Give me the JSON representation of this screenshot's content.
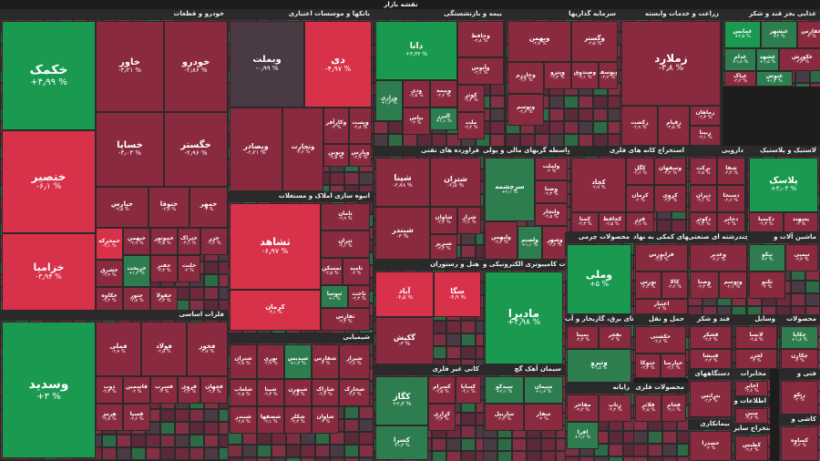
{
  "header": {
    "title": "نقشه بازار"
  },
  "legend_colors": {
    "up_strong": "#1a9a50",
    "up": "#2e7d4f",
    "neutral": "#4a3a44",
    "down": "#8a2a3e",
    "down_strong": "#d8314a"
  },
  "chart_data": {
    "type": "treemap",
    "sectors": [
      {
        "name": "خودرو و قطعات",
        "tiles": [
          {
            "name": "خکمک",
            "change": "+۴٫۹۹ %"
          },
          {
            "name": "خنصیر",
            "change": "-۶٫۱ %"
          },
          {
            "name": "خزامیا",
            "change": "-۳٫۹۴ %"
          },
          {
            "name": "خاور",
            "change": "-۳٫۲۱ %"
          },
          {
            "name": "خودرو",
            "change": "-۲٫۸۶ %"
          },
          {
            "name": "خساپا",
            "change": "-۳٫۰۴ %"
          },
          {
            "name": "خگستر",
            "change": "-۲٫۹۶ %"
          },
          {
            "name": "خپارس",
            "change": "-۳٫۵ %"
          },
          {
            "name": "ختوقا",
            "change": "-۲٫۷ %"
          },
          {
            "name": "خمهر",
            "change": "-۳ %"
          },
          {
            "name": "خمحرکه",
            "change": "-۴٫۱ %"
          },
          {
            "name": "خبهمن",
            "change": "-۲٫۹ %"
          },
          {
            "name": "خموتور",
            "change": "-۲٫۵ %"
          },
          {
            "name": "ختراک",
            "change": "-۳٫۱ %"
          },
          {
            "name": "خزر",
            "change": "-۲٫۶ %"
          },
          {
            "name": "خریخت",
            "change": "+۱٫۲ %"
          },
          {
            "name": "خشرق",
            "change": "-۲٫۹ %"
          },
          {
            "name": "خفنر",
            "change": "-۳٫۳ %"
          },
          {
            "name": "خلنت",
            "change": "-۲ %"
          },
          {
            "name": "خکاوه",
            "change": "-۲٫۲ %"
          },
          {
            "name": "ختور",
            "change": "-۲٫۸ %"
          },
          {
            "name": "خفولا",
            "change": "-۲٫۳ %"
          }
        ]
      },
      {
        "name": "فلزات اساسی",
        "tiles": [
          {
            "name": "وسدید",
            "change": "+۳ %"
          },
          {
            "name": "فملی",
            "change": "-۲٫۹ %"
          },
          {
            "name": "فولاد",
            "change": "-۲٫۵ %"
          },
          {
            "name": "فخوز",
            "change": "-۲٫۷ %"
          },
          {
            "name": "ذوب",
            "change": "-۲٫۳ %"
          },
          {
            "name": "فاسمین",
            "change": "-۲ %"
          },
          {
            "name": "فسرب",
            "change": "-۳ %"
          },
          {
            "name": "فروی",
            "change": "-۲٫۲ %"
          },
          {
            "name": "فجهان",
            "change": "-۲٫۴ %"
          },
          {
            "name": "هرمز",
            "change": "-۲٫۸ %"
          },
          {
            "name": "فسپا",
            "change": "-۲٫۶ %"
          }
        ]
      },
      {
        "name": "بانکها و موسسات اعتباری",
        "tiles": [
          {
            "name": "وبملت",
            "change": "-۰٫۹۹ %"
          },
          {
            "name": "دی",
            "change": "-۴٫۹۷ %"
          },
          {
            "name": "وبصادر",
            "change": "-۲٫۲۱ %"
          },
          {
            "name": "وتجارت",
            "change": "-۲٫۶ %"
          },
          {
            "name": "وکارآفر",
            "change": "-۲ %"
          },
          {
            "name": "وپست",
            "change": "-۲٫۸ %"
          },
          {
            "name": "ونوین",
            "change": "-۲٫۵ %"
          },
          {
            "name": "وپارس",
            "change": "-۲٫۷ %"
          }
        ]
      },
      {
        "name": "انبوه سازی املاک و مستغلات",
        "tiles": [
          {
            "name": "ثشاهد",
            "change": "-۶٫۹۷ %"
          },
          {
            "name": "ثامان",
            "change": "-۲٫۹ %"
          },
          {
            "name": "ثتران",
            "change": "-۳٫۱ %"
          },
          {
            "name": "ثامید",
            "change": "-۲ %"
          },
          {
            "name": "ثمسکن",
            "change": "-۲٫۵ %"
          },
          {
            "name": "ثنوسا",
            "change": "+۱ %"
          },
          {
            "name": "کرمان",
            "change": "-۴٫۱ %"
          },
          {
            "name": "ثاخت",
            "change": "-۲٫۳ %"
          },
          {
            "name": "ثفارس",
            "change": "-۲٫۲ %"
          }
        ]
      },
      {
        "name": "شیمیایی",
        "tiles": [
          {
            "name": "شتران",
            "change": "-۲٫۸ %"
          },
          {
            "name": "نوری",
            "change": "-۲٫۹ %"
          },
          {
            "name": "شپدیس",
            "change": "+۱٫۴ %"
          },
          {
            "name": "شفارس",
            "change": "-۲ %"
          },
          {
            "name": "شیراز",
            "change": "-۲٫۶ %"
          },
          {
            "name": "شپنا",
            "change": "-۲٫۳ %"
          },
          {
            "name": "شبهرن",
            "change": "-۲٫۵ %"
          },
          {
            "name": "شاراک",
            "change": "-۲٫۲ %"
          },
          {
            "name": "شخارک",
            "change": "-۲٫۴ %"
          },
          {
            "name": "شصفها",
            "change": "-۲٫۱ %"
          },
          {
            "name": "شکلر",
            "change": "-۲٫۳ %"
          },
          {
            "name": "شبندر",
            "change": "-۲٫۷ %"
          },
          {
            "name": "شلعاب",
            "change": "-۲٫۵ %"
          },
          {
            "name": "شاوان",
            "change": "-۲ %"
          }
        ]
      },
      {
        "name": "بیمه و بازنشستگی",
        "tiles": [
          {
            "name": "دانا",
            "change": "+۳٫۴۳ %"
          },
          {
            "name": "وحافظ",
            "change": "-۲٫۸ %"
          },
          {
            "name": "وآتوس",
            "change": "-۲٫۱ %"
          },
          {
            "name": "ورازی",
            "change": "+۱٫۳ %"
          },
          {
            "name": "ودی",
            "change": "-۲٫۵ %"
          },
          {
            "name": "وبیمه",
            "change": "-۲٫۶ %"
          },
          {
            "name": "البرز",
            "change": "+۱٫۱ %"
          },
          {
            "name": "کوثر",
            "change": "-۲٫۲ %"
          },
          {
            "name": "بپاس",
            "change": "-۲ %"
          },
          {
            "name": "ملت",
            "change": "-۲٫۴ %"
          }
        ]
      },
      {
        "name": "سرمایه گذاریها",
        "tiles": [
          {
            "name": "وبهمن",
            "change": "-۲٫۷ %"
          },
          {
            "name": "وگستر",
            "change": "-۲٫۵ %"
          },
          {
            "name": "وپترو",
            "change": "-۲٫۳ %"
          },
          {
            "name": "وصندوق",
            "change": "-۲٫۱ %"
          },
          {
            "name": "وخارزم",
            "change": "-۲٫۴ %"
          },
          {
            "name": "وتوسم",
            "change": "-۲٫۶ %"
          },
          {
            "name": "ویوسف",
            "change": "-۲٫۲ %"
          }
        ]
      },
      {
        "name": "زراعت و خدمات وابسته",
        "tiles": [
          {
            "name": "زملارد",
            "change": "-۳٫۸ %"
          },
          {
            "name": "زکشت",
            "change": "-۲٫۹ %"
          },
          {
            "name": "زقیام",
            "change": "-۲٫۵ %"
          },
          {
            "name": "زماهان",
            "change": "-۲٫۳ %"
          },
          {
            "name": "زبینا",
            "change": "-۲٫۱ %"
          }
        ]
      },
      {
        "name": "غذایی بجز قند و شکر",
        "tiles": [
          {
            "name": "غمایس",
            "change": "+۲٫۵ %"
          },
          {
            "name": "غبشهر",
            "change": "+۲ %"
          },
          {
            "name": "غدام",
            "change": "+۱٫۸ %"
          },
          {
            "name": "غشهد",
            "change": "+۱٫۵ %"
          },
          {
            "name": "غکورش",
            "change": "-۲٫۳ %"
          },
          {
            "name": "غفارس",
            "change": "-۲ %"
          },
          {
            "name": "غپاک",
            "change": "-۲٫۲ %"
          },
          {
            "name": "غنوش",
            "change": "+۱٫۲ %"
          }
        ]
      },
      {
        "name": "فراورده های نفتی",
        "tiles": [
          {
            "name": "شپنا",
            "change": "-۲٫۷۸ %"
          },
          {
            "name": "شتران",
            "change": "-۲٫۵ %"
          },
          {
            "name": "شبندر",
            "change": "-۳ %"
          },
          {
            "name": "شاوان",
            "change": "-۲٫۲ %"
          },
          {
            "name": "شبریز",
            "change": "-۲٫۴ %"
          },
          {
            "name": "شراز",
            "change": "-۲٫۱ %"
          }
        ]
      },
      {
        "name": "واسطه گریهای مالی و پولی",
        "tiles": [
          {
            "name": "سرچشمه",
            "change": "+۲٫۱ %"
          },
          {
            "name": "ولملت",
            "change": "-۲ %"
          },
          {
            "name": "وصنا",
            "change": "-۲٫۳ %"
          },
          {
            "name": "ولتجار",
            "change": "-۲٫۵ %"
          },
          {
            "name": "ولبهمن",
            "change": "-۲٫۲ %"
          },
          {
            "name": "ولصنم",
            "change": "+۱٫۱ %"
          },
          {
            "name": "وشهر",
            "change": "-۲٫۴ %"
          }
        ]
      },
      {
        "name": "استخراج کانه های فلزی",
        "tiles": [
          {
            "name": "کگل",
            "change": "-۲٫۶ %"
          },
          {
            "name": "کچاد",
            "change": "-۲٫۹ %"
          },
          {
            "name": "وسفهان",
            "change": "-۲٫۲ %"
          },
          {
            "name": "کروی",
            "change": "-۲٫۴ %"
          },
          {
            "name": "کرمان",
            "change": "-۲ %"
          },
          {
            "name": "فزر",
            "change": "-۲٫۱ %"
          },
          {
            "name": "کمنا",
            "change": "-۲٫۳ %"
          },
          {
            "name": "کحافظ",
            "change": "-۲٫۵ %"
          }
        ]
      },
      {
        "name": "دارویی",
        "tiles": [
          {
            "name": "برکت",
            "change": "-۲٫۸ %"
          },
          {
            "name": "شفا",
            "change": "-۲٫۴ %"
          },
          {
            "name": "دیران",
            "change": "-۲٫۱ %"
          },
          {
            "name": "دسبحا",
            "change": "-۲٫۶ %"
          },
          {
            "name": "دکوثر",
            "change": "-۲٫۲ %"
          },
          {
            "name": "دجابر",
            "change": "-۲ %"
          }
        ]
      },
      {
        "name": "لاستیک و پلاستیک",
        "tiles": [
          {
            "name": "پلاسک",
            "change": "+۳٫۰۳ %"
          },
          {
            "name": "دکیمیا",
            "change": "-۲٫۳ %"
          },
          {
            "name": "پسهند",
            "change": "-۲ %"
          },
          {
            "name": "پکرمان",
            "change": "-۲٫۵ %"
          }
        ]
      },
      {
        "name": "محصولات چرمی",
        "tiles": [
          {
            "name": "وملی",
            "change": "+۵ %"
          }
        ]
      },
      {
        "name": "فعالیتهای کمکی به نهاد",
        "tiles": [
          {
            "name": "فرابورس",
            "change": "-۲٫۷ %"
          },
          {
            "name": "بورس",
            "change": "-۲٫۴ %"
          },
          {
            "name": "کالا",
            "change": "-۲٫۲ %"
          },
          {
            "name": "اعتبار",
            "change": "-۲ %"
          }
        ]
      },
      {
        "name": "چندرشته ای صنعتی",
        "tiles": [
          {
            "name": "وغدیر",
            "change": "-۲٫۶ %"
          },
          {
            "name": "وصنا",
            "change": "-۲٫۳ %"
          },
          {
            "name": "وتوسم",
            "change": "-۲٫۱ %"
          }
        ]
      },
      {
        "name": "ماشین آلات و",
        "tiles": [
          {
            "name": "تیکو",
            "change": "+۲ %"
          },
          {
            "name": "تپمپی",
            "change": "-۲٫۲ %"
          },
          {
            "name": "تکنو",
            "change": "-۲ %"
          }
        ]
      },
      {
        "name": "هتل و رستوران",
        "tiles": [
          {
            "name": "آباد",
            "change": "-۴٫۵ %"
          },
          {
            "name": "سگا",
            "change": "-۴٫۹ %"
          },
          {
            "name": "گکیش",
            "change": "-۳ %"
          }
        ]
      },
      {
        "name": "محصولات کامپیوتری الکترونیکی و",
        "tiles": [
          {
            "name": "مادیرا",
            "change": "+۴٫۹۸ %"
          }
        ]
      },
      {
        "name": "فراورده های برق، گازبخار و آب",
        "tiles": [
          {
            "name": "بمپنا",
            "change": "-۲٫۳ %"
          },
          {
            "name": "بفجر",
            "change": "-۲ %"
          },
          {
            "name": "وتبرو",
            "change": "+۱٫۵ %"
          }
        ]
      },
      {
        "name": "حمل و نقل",
        "tiles": [
          {
            "name": "حکشتی",
            "change": "-۲٫۶ %"
          },
          {
            "name": "حتوکا",
            "change": "-۲٫۳ %"
          },
          {
            "name": "حپارسا",
            "change": "-۲٫۱ %"
          }
        ]
      },
      {
        "name": "قند و شکر",
        "tiles": [
          {
            "name": "قشکر",
            "change": "-۲٫۴ %"
          },
          {
            "name": "قنیشا",
            "change": "-۲٫۲ %"
          }
        ]
      },
      {
        "name": "وسایل",
        "tiles": [
          {
            "name": "لابسا",
            "change": "-۲٫۵ %"
          },
          {
            "name": "لخزر",
            "change": "-۲ %"
          }
        ]
      },
      {
        "name": "کانی غیر فلزی",
        "tiles": [
          {
            "name": "کگاز",
            "change": "+۲٫۳ %"
          },
          {
            "name": "کسرام",
            "change": "-۲٫۵ %"
          },
          {
            "name": "کساپا",
            "change": "-۲٫۱ %"
          },
          {
            "name": "کرازی",
            "change": "-۲٫۳ %"
          },
          {
            "name": "کسرا",
            "change": "+۱٫۴ %"
          }
        ]
      },
      {
        "name": "سیمان آهک گچ",
        "tiles": [
          {
            "name": "سیدکو",
            "change": "+۲٫۱ %"
          },
          {
            "name": "سیمان",
            "change": "+۱٫۶ %"
          },
          {
            "name": "ساربیل",
            "change": "-۲٫۲ %"
          },
          {
            "name": "سفار",
            "change": "-۲ %"
          }
        ]
      },
      {
        "name": "رایانه",
        "tiles": [
          {
            "name": "مفاخر",
            "change": "-۲٫۴ %"
          },
          {
            "name": "رتاپ",
            "change": "-۲٫۲ %"
          },
          {
            "name": "افرا",
            "change": "+۱٫۲ %"
          }
        ]
      },
      {
        "name": "محصولات فلزی",
        "tiles": [
          {
            "name": "فلاتر",
            "change": "-۲٫۵ %"
          },
          {
            "name": "فجام",
            "change": "-۲٫۱ %"
          }
        ]
      },
      {
        "name": "دستگاههای",
        "tiles": [
          {
            "name": "بترانس",
            "change": "-۲٫۳ %"
          }
        ]
      },
      {
        "name": "مخابرات",
        "tiles": [
          {
            "name": "اخابر",
            "change": "-۲٫۶ %"
          }
        ]
      },
      {
        "name": "اطلاعات و",
        "tiles": [
          {
            "name": "مبین",
            "change": "-۲٫۲ %"
          }
        ]
      },
      {
        "name": "بیمانکاری",
        "tiles": [
          {
            "name": "خصدرا",
            "change": "-۲ %"
          }
        ]
      },
      {
        "name": "محصولات",
        "tiles": [
          {
            "name": "چکاپا",
            "change": "+۱٫۸ %"
          },
          {
            "name": "چکارن",
            "change": "-۲ %"
          }
        ]
      },
      {
        "name": "استخراج سایر",
        "tiles": [
          {
            "name": "کطبس",
            "change": "-۲٫۲ %"
          }
        ]
      },
      {
        "name": "فنی و",
        "tiles": [
          {
            "name": "رتکو",
            "change": "-۲ %"
          }
        ]
      },
      {
        "name": "کاشی و",
        "tiles": [
          {
            "name": "کساوه",
            "change": "-۲٫۳ %"
          }
        ]
      },
      {
        "name": "استخراج",
        "tiles": [
          {
            "name": "تپکو",
            "change": "-۲ %"
          }
        ]
      }
    ]
  }
}
